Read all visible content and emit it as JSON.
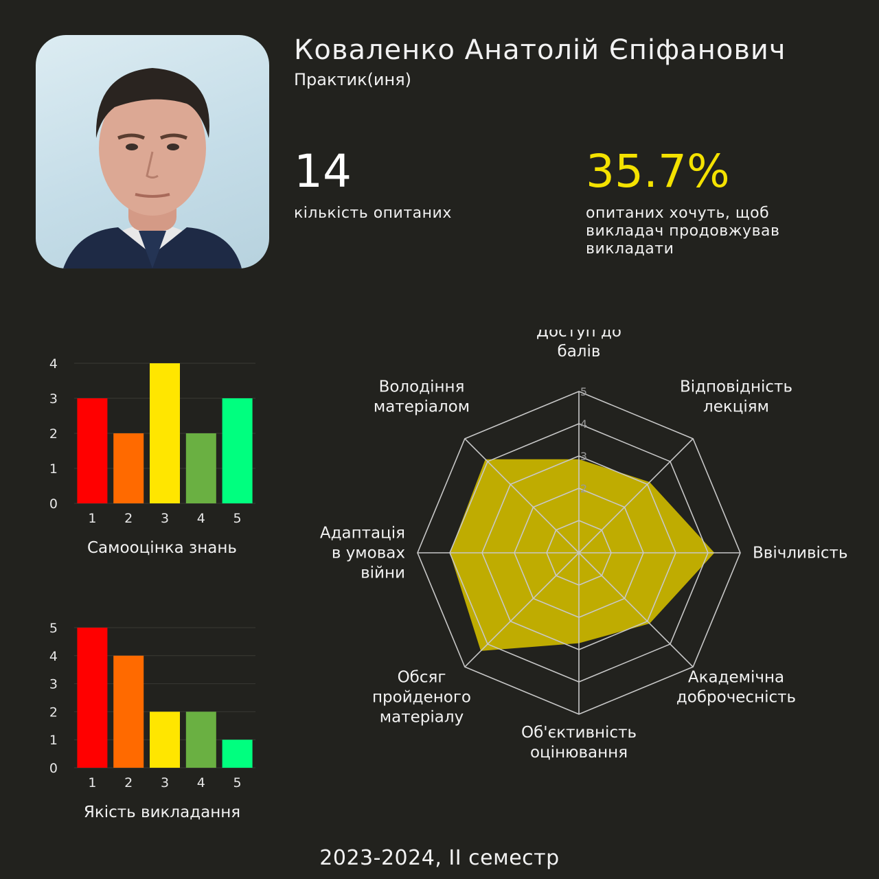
{
  "teacher": {
    "name": "Коваленко Анатолій Єпіфанович",
    "role": "Практик(иня)"
  },
  "stats": {
    "respondents_value": "14",
    "respondents_label": "кількість опитаних",
    "continue_value": "35.7%",
    "continue_label": "опитаних хочуть, щоб викладач продовжував викладати"
  },
  "footer": "2023-2024, II семестр",
  "colors": {
    "background": "#22221e",
    "accent": "#f4e200",
    "bar_colors": [
      "#ff0000",
      "#ff6a00",
      "#ffe600",
      "#6ab042",
      "#00ff7f"
    ],
    "radar_fill": "#c8b400"
  },
  "chart_data": [
    {
      "type": "bar",
      "title": "Самооцінка знань",
      "categories": [
        "1",
        "2",
        "3",
        "4",
        "5"
      ],
      "values": [
        3,
        2,
        4,
        2,
        3
      ],
      "yticks": [
        "0",
        "1",
        "2",
        "3",
        "4"
      ],
      "ylim": [
        0,
        4
      ],
      "grid": true
    },
    {
      "type": "bar",
      "title": "Якість викладання",
      "categories": [
        "1",
        "2",
        "3",
        "4",
        "5"
      ],
      "values": [
        5,
        4,
        2,
        2,
        1
      ],
      "yticks": [
        "0",
        "1",
        "2",
        "3",
        "4",
        "5"
      ],
      "ylim": [
        0,
        5
      ],
      "grid": true
    },
    {
      "type": "radar",
      "axes": [
        {
          "lines": [
            "Доступ до",
            "балів"
          ]
        },
        {
          "lines": [
            "Відповідність",
            "лекціям"
          ]
        },
        {
          "lines": [
            "Ввічливість"
          ]
        },
        {
          "lines": [
            "Академічна",
            "доброчесність"
          ]
        },
        {
          "lines": [
            "Об'єктивність",
            "оцінювання"
          ]
        },
        {
          "lines": [
            "Обсяг",
            "пройденого",
            "матеріалу"
          ]
        },
        {
          "lines": [
            "Адаптація",
            "в умовах",
            "війни"
          ]
        },
        {
          "lines": [
            "Володіння",
            "матеріалом"
          ]
        }
      ],
      "values": [
        2.9,
        3.1,
        4.2,
        3.1,
        2.8,
        4.3,
        4.0,
        4.1
      ],
      "rings": [
        1,
        2,
        3,
        4,
        5
      ],
      "ring_labels": [
        "2",
        "3",
        "4",
        "5"
      ],
      "rmax": 5
    }
  ]
}
